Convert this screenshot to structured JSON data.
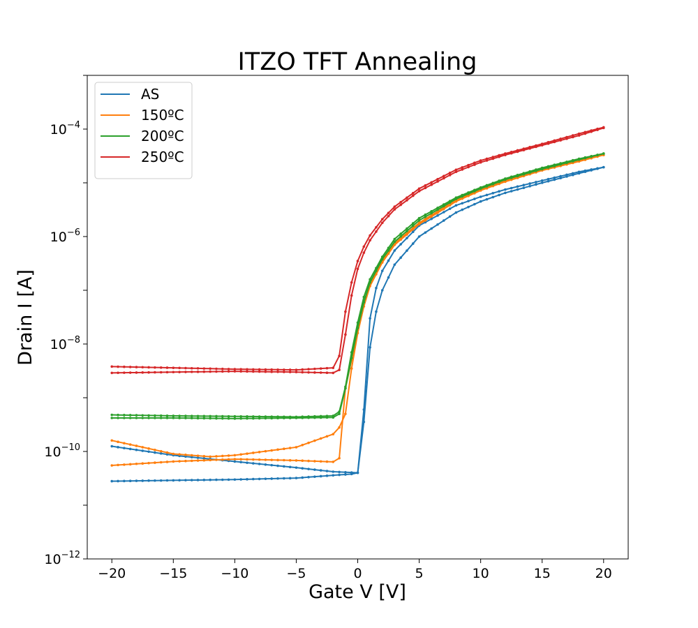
{
  "chart_data": {
    "type": "line",
    "title": "ITZO TFT Annealing",
    "xlabel": "Gate V [V]",
    "ylabel": "Drain I [A]",
    "yscale": "log",
    "xlim": [
      -22,
      22
    ],
    "ylim": [
      1e-12,
      0.001
    ],
    "x_ticks": [
      -20,
      -15,
      -10,
      -5,
      0,
      5,
      10,
      15,
      20
    ],
    "x_tick_labels": [
      "−20",
      "−15",
      "−10",
      "−5",
      "0",
      "5",
      "10",
      "15",
      "20"
    ],
    "y_ticks": [
      {
        "value": 1e-12,
        "base": "10",
        "exp": "−12"
      },
      {
        "value": 1e-10,
        "base": "10",
        "exp": "−10"
      },
      {
        "value": 1e-08,
        "base": "10",
        "exp": "−8"
      },
      {
        "value": 1e-06,
        "base": "10",
        "exp": "−6"
      },
      {
        "value": 0.0001,
        "base": "10",
        "exp": "−4"
      }
    ],
    "legend_position": "top-left",
    "series": [
      {
        "name": "AS",
        "color": "#1f77b4",
        "branches": [
          {
            "x": [
              -20,
              -15,
              -10,
              -5,
              -2,
              -0.5,
              0,
              0.3,
              0.6,
              0.9,
              1.2,
              1.5,
              2,
              3,
              5,
              8,
              10,
              12,
              15,
              18,
              20
            ],
            "y": [
              2.8e-11,
              2.9e-11,
              3e-11,
              3.2e-11,
              3.6e-11,
              3.8e-11,
              4e-11,
              7e-11,
              8e-10,
              6e-09,
              1.8e-08,
              4e-08,
              1e-07,
              3e-07,
              1e-06,
              2.8e-06,
              4.5e-06,
              6.5e-06,
              1e-05,
              1.5e-05,
              1.95e-05
            ]
          },
          {
            "x": [
              20,
              18,
              15,
              12,
              10,
              8,
              5,
              3,
              2,
              1.5,
              1,
              0.7,
              0.4,
              0.1,
              -2,
              -5,
              -10,
              -15,
              -20
            ],
            "y": [
              1.95e-05,
              1.6e-05,
              1.1e-05,
              7.5e-06,
              5.5e-06,
              3.8e-06,
              1.6e-06,
              5.5e-07,
              2.3e-07,
              1.1e-07,
              3e-08,
              3.5e-09,
              2.5e-10,
              4e-11,
              4.2e-11,
              5e-11,
              6.5e-11,
              8.5e-11,
              1.25e-10
            ]
          }
        ]
      },
      {
        "name": "150ºC",
        "color": "#ff7f0e",
        "branches": [
          {
            "x": [
              -20,
              -15,
              -10,
              -5,
              -2,
              -1.5,
              -1,
              -0.5,
              0,
              0.5,
              1,
              2,
              3,
              5,
              8,
              10,
              12,
              15,
              18,
              20
            ],
            "y": [
              5.5e-11,
              6.5e-11,
              7.2e-11,
              6.8e-11,
              6.4e-11,
              7.5e-11,
              1.5e-09,
              5e-09,
              2e-08,
              6e-08,
              1.3e-07,
              3.5e-07,
              7.5e-07,
              1.8e-06,
              4.8e-06,
              7.5e-06,
              1.1e-05,
              1.75e-05,
              2.6e-05,
              3.3e-05
            ]
          },
          {
            "x": [
              20,
              18,
              15,
              12,
              10,
              8,
              5,
              3,
              2,
              1,
              0.5,
              0,
              -0.5,
              -1,
              -1.5,
              -2,
              -5,
              -10,
              -12,
              -15,
              -20
            ],
            "y": [
              3.3e-05,
              2.5e-05,
              1.7e-05,
              1.05e-05,
              7.2e-06,
              4.5e-06,
              1.7e-06,
              7e-07,
              3.3e-07,
              1.2e-07,
              5e-08,
              1.6e-08,
              3.5e-09,
              5e-10,
              2.8e-10,
              2.1e-10,
              1.2e-10,
              8.5e-11,
              8e-11,
              9e-11,
              1.6e-10
            ]
          }
        ]
      },
      {
        "name": "200ºC",
        "color": "#2ca02c",
        "branches": [
          {
            "x": [
              -20,
              -15,
              -10,
              -5,
              -2,
              -1.5,
              -1,
              -0.5,
              0,
              0.5,
              1,
              2,
              3,
              5,
              8,
              10,
              12,
              15,
              18,
              20
            ],
            "y": [
              4.2e-10,
              4.2e-10,
              4.1e-10,
              4.2e-10,
              4.3e-10,
              5e-10,
              1.5e-09,
              5.5e-09,
              2e-08,
              6e-08,
              1.4e-07,
              3.8e-07,
              8e-07,
              2e-06,
              5e-06,
              7.8e-06,
              1.15e-05,
              1.8e-05,
              2.7e-05,
              3.5e-05
            ]
          },
          {
            "x": [
              20,
              18,
              15,
              12,
              10,
              8,
              5,
              3,
              2,
              1,
              0.5,
              0,
              -0.5,
              -1,
              -1.5,
              -2,
              -5,
              -10,
              -15,
              -20
            ],
            "y": [
              3.5e-05,
              2.8e-05,
              1.9e-05,
              1.2e-05,
              8.2e-06,
              5.3e-06,
              2.2e-06,
              9e-07,
              4.2e-07,
              1.6e-07,
              7.5e-08,
              2.5e-08,
              7e-09,
              1.6e-09,
              5.5e-10,
              4.6e-10,
              4.4e-10,
              4.5e-10,
              4.6e-10,
              4.8e-10
            ]
          }
        ]
      },
      {
        "name": "250ºC",
        "color": "#d62728",
        "branches": [
          {
            "x": [
              -20,
              -15,
              -10,
              -5,
              -2,
              -1.5,
              -1,
              -0.5,
              0,
              0.5,
              1,
              2,
              3,
              5,
              8,
              10,
              12,
              15,
              18,
              20
            ],
            "y": [
              2.9e-09,
              3e-09,
              3.1e-09,
              3e-09,
              2.9e-09,
              3.3e-09,
              1.5e-08,
              8e-08,
              2.5e-07,
              5e-07,
              8.5e-07,
              1.8e-06,
              3.2e-06,
              7e-06,
              1.6e-05,
              2.4e-05,
              3.3e-05,
              5e-05,
              7.6e-05,
              0.000105
            ]
          },
          {
            "x": [
              20,
              18,
              15,
              12,
              10,
              8,
              5,
              3,
              2,
              1,
              0.5,
              0,
              -0.5,
              -1,
              -1.5,
              -2,
              -5,
              -10,
              -15,
              -20
            ],
            "y": [
              0.000108,
              8.2e-05,
              5.3e-05,
              3.5e-05,
              2.6e-05,
              1.75e-05,
              7.8e-06,
              3.6e-06,
              2.1e-06,
              1.05e-06,
              6.5e-07,
              3.5e-07,
              1.4e-07,
              4e-08,
              6e-09,
              3.6e-09,
              3.3e-09,
              3.4e-09,
              3.6e-09,
              3.8e-09
            ]
          }
        ]
      }
    ]
  }
}
